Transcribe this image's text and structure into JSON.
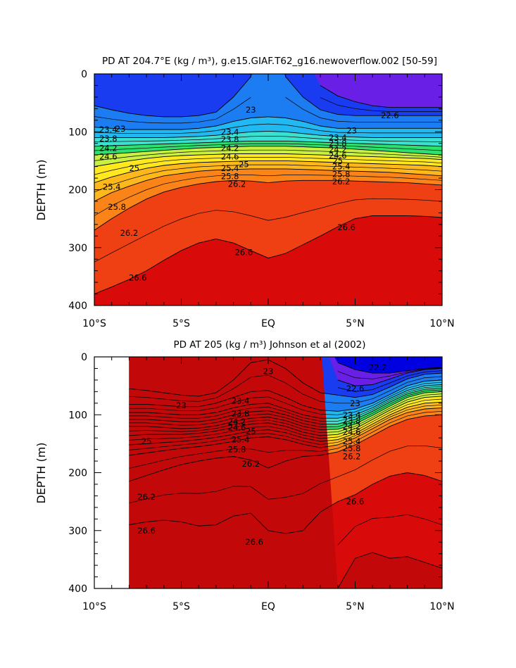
{
  "chart_data": [
    {
      "type": "contour",
      "title": "PD AT 204.7°E (kg / m³), g.e15.GIAF.T62_g16.newoverflow.002 [50-59]",
      "xlabel": "",
      "ylabel": "DEPTH (m)",
      "xlim": [
        -10,
        10
      ],
      "ylim": [
        400,
        0
      ],
      "x_ticks": [
        -10,
        -5,
        0,
        5,
        10
      ],
      "x_tick_labels": [
        "10°S",
        "5°S",
        "EQ",
        "5°N",
        "10°N"
      ],
      "y_ticks": [
        0,
        100,
        200,
        300,
        400
      ],
      "y_tick_labels": [
        "0",
        "100",
        "200",
        "300",
        "400"
      ],
      "contour_interval": 0.2,
      "levels": [
        21.8,
        22.0,
        22.2,
        22.4,
        22.6,
        22.8,
        23.0,
        23.2,
        23.4,
        23.6,
        23.8,
        24.0,
        24.2,
        24.4,
        24.6,
        24.8,
        25.0,
        25.2,
        25.4,
        25.6,
        25.8,
        26.0,
        26.2,
        26.4,
        26.6,
        26.8,
        27.0
      ],
      "latitudes": [
        -10,
        -9,
        -8,
        -7,
        -6,
        -5,
        -4,
        -3,
        -2,
        -1,
        0,
        1,
        2,
        3,
        4,
        5,
        6,
        7,
        8,
        9,
        10
      ],
      "contour_depths": {
        "22.6": [
          null,
          null,
          null,
          null,
          null,
          null,
          null,
          null,
          null,
          null,
          null,
          null,
          null,
          20,
          38,
          48,
          55,
          58,
          58,
          58,
          58
        ],
        "23.0": [
          55,
          62,
          68,
          72,
          74,
          74,
          72,
          66,
          40,
          5,
          null,
          5,
          40,
          62,
          70,
          72,
          72,
          72,
          72,
          72,
          72
        ],
        "23.4": [
          92,
          94,
          96,
          96,
          96,
          96,
          94,
          90,
          82,
          76,
          74,
          76,
          82,
          90,
          94,
          94,
          94,
          94,
          94,
          94,
          94
        ],
        "23.8": [
          110,
          110,
          110,
          110,
          110,
          109,
          108,
          106,
          103,
          100,
          99,
          100,
          103,
          106,
          108,
          109,
          110,
          110,
          110,
          110,
          110
        ],
        "24.2": [
          125,
          124,
          123,
          122,
          121,
          120,
          119,
          118,
          117,
          116,
          116,
          116,
          117,
          118,
          119,
          120,
          121,
          122,
          123,
          124,
          125
        ],
        "24.6": [
          140,
          138,
          136,
          134,
          132,
          130,
          128,
          127,
          126,
          125,
          125,
          125,
          126,
          127,
          128,
          130,
          132,
          134,
          136,
          138,
          140
        ],
        "25.0": [
          160,
          155,
          150,
          146,
          143,
          141,
          140,
          139,
          138,
          138,
          138,
          138,
          139,
          140,
          141,
          142,
          143,
          144,
          145,
          146,
          148
        ],
        "25.4": [
          188,
          178,
          170,
          163,
          158,
          155,
          153,
          152,
          151,
          150,
          150,
          150,
          151,
          152,
          153,
          154,
          155,
          156,
          157,
          158,
          160
        ],
        "25.8": [
          220,
          205,
          194,
          184,
          176,
          172,
          168,
          166,
          165,
          164,
          164,
          164,
          165,
          166,
          167,
          168,
          169,
          170,
          172,
          174,
          176
        ],
        "26.2": [
          270,
          250,
          232,
          216,
          204,
          196,
          190,
          186,
          184,
          185,
          188,
          185,
          184,
          184,
          184,
          185,
          186,
          187,
          188,
          190,
          192
        ],
        "26.6": [
          380,
          368,
          355,
          340,
          322,
          305,
          292,
          285,
          292,
          305,
          318,
          310,
          295,
          280,
          264,
          250,
          245,
          245,
          245,
          246,
          248
        ]
      },
      "labels": [
        {
          "text": "23",
          "lat": -8.5,
          "depth": 95
        },
        {
          "text": "23.4",
          "lat": -9.2,
          "depth": 96
        },
        {
          "text": "23.8",
          "lat": -9.2,
          "depth": 112
        },
        {
          "text": "24.2",
          "lat": -9.2,
          "depth": 128
        },
        {
          "text": "24.6",
          "lat": -9.2,
          "depth": 143
        },
        {
          "text": "25",
          "lat": -7.7,
          "depth": 163
        },
        {
          "text": "25.4",
          "lat": -9.0,
          "depth": 195
        },
        {
          "text": "25.8",
          "lat": -8.7,
          "depth": 230
        },
        {
          "text": "26.2",
          "lat": -8.0,
          "depth": 275
        },
        {
          "text": "26.6",
          "lat": -7.5,
          "depth": 352
        },
        {
          "text": "23",
          "lat": -1.0,
          "depth": 62
        },
        {
          "text": "23.4",
          "lat": -2.2,
          "depth": 100
        },
        {
          "text": "23.8",
          "lat": -2.2,
          "depth": 113
        },
        {
          "text": "24.2",
          "lat": -2.2,
          "depth": 128
        },
        {
          "text": "24.6",
          "lat": -2.2,
          "depth": 143
        },
        {
          "text": "25",
          "lat": -1.4,
          "depth": 156
        },
        {
          "text": "25.4",
          "lat": -2.2,
          "depth": 163
        },
        {
          "text": "25.8",
          "lat": -2.2,
          "depth": 177
        },
        {
          "text": "26.2",
          "lat": -1.8,
          "depth": 190
        },
        {
          "text": "26.6",
          "lat": -1.4,
          "depth": 308
        },
        {
          "text": "22.6",
          "lat": 7.0,
          "depth": 72
        },
        {
          "text": "23",
          "lat": 4.8,
          "depth": 98
        },
        {
          "text": "23.4",
          "lat": 4.0,
          "depth": 110
        },
        {
          "text": "23.8",
          "lat": 4.0,
          "depth": 120
        },
        {
          "text": "24.2",
          "lat": 4.0,
          "depth": 131
        },
        {
          "text": "24.6",
          "lat": 4.0,
          "depth": 141
        },
        {
          "text": "25",
          "lat": 4.0,
          "depth": 150
        },
        {
          "text": "25.4",
          "lat": 4.2,
          "depth": 160
        },
        {
          "text": "25.8",
          "lat": 4.2,
          "depth": 173
        },
        {
          "text": "26.2",
          "lat": 4.2,
          "depth": 186
        },
        {
          "text": "26.6",
          "lat": 4.5,
          "depth": 265
        }
      ]
    },
    {
      "type": "contour",
      "title": "PD AT 205 (kg / m³) Johnson et al (2002)",
      "xlabel": "",
      "ylabel": "DEPTH (m)",
      "xlim": [
        -10,
        10
      ],
      "ylim": [
        400,
        0
      ],
      "data_lat_range": [
        -8,
        10
      ],
      "x_ticks": [
        -10,
        -5,
        0,
        5,
        10
      ],
      "x_tick_labels": [
        "10°S",
        "5°S",
        "EQ",
        "5°N",
        "10°N"
      ],
      "y_ticks": [
        0,
        100,
        200,
        300,
        400
      ],
      "y_tick_labels": [
        "0",
        "100",
        "200",
        "300",
        "400"
      ],
      "contour_interval": 0.2,
      "levels": [
        21.8,
        22.0,
        22.2,
        22.4,
        22.6,
        22.8,
        23.0,
        23.2,
        23.4,
        23.6,
        23.8,
        24.0,
        24.2,
        24.4,
        24.6,
        24.8,
        25.0,
        25.2,
        25.4,
        25.6,
        25.8,
        26.0,
        26.2,
        26.4,
        26.6,
        26.8,
        27.0
      ],
      "latitudes": [
        -8,
        -7,
        -6,
        -5,
        -4,
        -3,
        -2,
        -1,
        0,
        1,
        2,
        3,
        4,
        5,
        6,
        7,
        8,
        9,
        10
      ],
      "contour_depths": {
        "22.2": [
          null,
          null,
          null,
          null,
          null,
          null,
          null,
          null,
          null,
          null,
          null,
          null,
          10,
          22,
          28,
          28,
          24,
          20,
          18
        ],
        "22.6": [
          null,
          null,
          null,
          null,
          null,
          null,
          null,
          null,
          null,
          null,
          null,
          null,
          40,
          50,
          48,
          38,
          28,
          22,
          20
        ],
        "23.0": [
          55,
          58,
          62,
          66,
          68,
          62,
          40,
          10,
          5,
          20,
          45,
          62,
          66,
          70,
          65,
          52,
          38,
          30,
          28
        ],
        "23.4": [
          82,
          82,
          84,
          86,
          86,
          80,
          70,
          60,
          58,
          70,
          84,
          92,
          94,
          90,
          80,
          65,
          50,
          42,
          40
        ],
        "23.8": [
          96,
          96,
          98,
          100,
          100,
          96,
          88,
          82,
          80,
          90,
          100,
          106,
          106,
          100,
          88,
          72,
          58,
          50,
          48
        ],
        "24.2": [
          108,
          108,
          110,
          112,
          112,
          108,
          100,
          95,
          93,
          100,
          110,
          116,
          116,
          108,
          94,
          78,
          64,
          56,
          54
        ],
        "24.6": [
          120,
          120,
          122,
          124,
          123,
          119,
          112,
          106,
          104,
          110,
          120,
          126,
          125,
          116,
          101,
          85,
          70,
          62,
          60
        ],
        "25.0": [
          136,
          134,
          134,
          134,
          132,
          128,
          122,
          116,
          114,
          120,
          130,
          136,
          134,
          124,
          108,
          92,
          78,
          70,
          68
        ],
        "25.4": [
          152,
          150,
          148,
          146,
          143,
          139,
          134,
          128,
          126,
          131,
          140,
          146,
          143,
          132,
          116,
          100,
          87,
          80,
          78
        ],
        "25.8": [
          170,
          166,
          162,
          158,
          155,
          151,
          146,
          140,
          138,
          143,
          151,
          157,
          152,
          140,
          124,
          108,
          96,
          90,
          88
        ],
        "26.2": [
          215,
          205,
          195,
          186,
          180,
          175,
          172,
          178,
          192,
          180,
          172,
          170,
          164,
          152,
          136,
          120,
          108,
          102,
          100
        ],
        "26.6": [
          290,
          285,
          282,
          285,
          292,
          290,
          275,
          270,
          300,
          305,
          300,
          268,
          250,
          238,
          220,
          206,
          200,
          205,
          215
        ],
        "27.0": [
          null,
          null,
          null,
          null,
          null,
          null,
          null,
          null,
          null,
          null,
          null,
          null,
          400,
          348,
          338,
          348,
          345,
          355,
          365
        ]
      },
      "labels": [
        {
          "text": "23",
          "lat": -5.0,
          "depth": 84
        },
        {
          "text": "26.2",
          "lat": -7.0,
          "depth": 242
        },
        {
          "text": "25",
          "lat": -7.0,
          "depth": 146
        },
        {
          "text": "26.6",
          "lat": -7.0,
          "depth": 300
        },
        {
          "text": "23",
          "lat": 0.0,
          "depth": 25
        },
        {
          "text": "23.4",
          "lat": -1.6,
          "depth": 76
        },
        {
          "text": "23.8",
          "lat": -1.6,
          "depth": 98
        },
        {
          "text": "24.2",
          "lat": -1.8,
          "depth": 112
        },
        {
          "text": "24.6",
          "lat": -1.8,
          "depth": 122
        },
        {
          "text": "25",
          "lat": -1.0,
          "depth": 128
        },
        {
          "text": "25.4",
          "lat": -1.6,
          "depth": 143
        },
        {
          "text": "25.8",
          "lat": -1.8,
          "depth": 160
        },
        {
          "text": "26.2",
          "lat": -1.0,
          "depth": 185
        },
        {
          "text": "26.6",
          "lat": -0.8,
          "depth": 320
        },
        {
          "text": "22.2",
          "lat": 6.3,
          "depth": 18
        },
        {
          "text": "22.6",
          "lat": 5.0,
          "depth": 55
        },
        {
          "text": "23",
          "lat": 5.0,
          "depth": 80
        },
        {
          "text": "23.4",
          "lat": 4.8,
          "depth": 100
        },
        {
          "text": "23.8",
          "lat": 4.8,
          "depth": 110
        },
        {
          "text": "24.2",
          "lat": 4.8,
          "depth": 120
        },
        {
          "text": "24.6",
          "lat": 4.8,
          "depth": 130
        },
        {
          "text": "25.4",
          "lat": 4.8,
          "depth": 146
        },
        {
          "text": "25.8",
          "lat": 4.8,
          "depth": 158
        },
        {
          "text": "26.2",
          "lat": 4.8,
          "depth": 172
        },
        {
          "text": "26.6",
          "lat": 5.0,
          "depth": 250
        }
      ]
    }
  ],
  "colors": {
    "21.8": "#0000e0",
    "22.2": "#6a1fe6",
    "22.6": "#1a3cf0",
    "23.0": "#1c7cf2",
    "23.2": "#1e9bf4",
    "23.4": "#22b8f2",
    "23.6": "#2cd0ea",
    "23.8": "#3ae0d0",
    "24.0": "#3ee8a8",
    "24.2": "#2ee070",
    "24.4": "#6ce84a",
    "24.6": "#c8f040",
    "24.8": "#f5f52e",
    "25.0": "#ffe820",
    "25.2": "#ffd21c",
    "25.4": "#ffb81c",
    "25.6": "#ff9e1a",
    "25.8": "#fb8418",
    "26.0": "#f26a16",
    "26.2": "#ee4012",
    "26.4": "#e8200e",
    "26.6": "#d80a0a",
    "27.0": "#c20808"
  }
}
